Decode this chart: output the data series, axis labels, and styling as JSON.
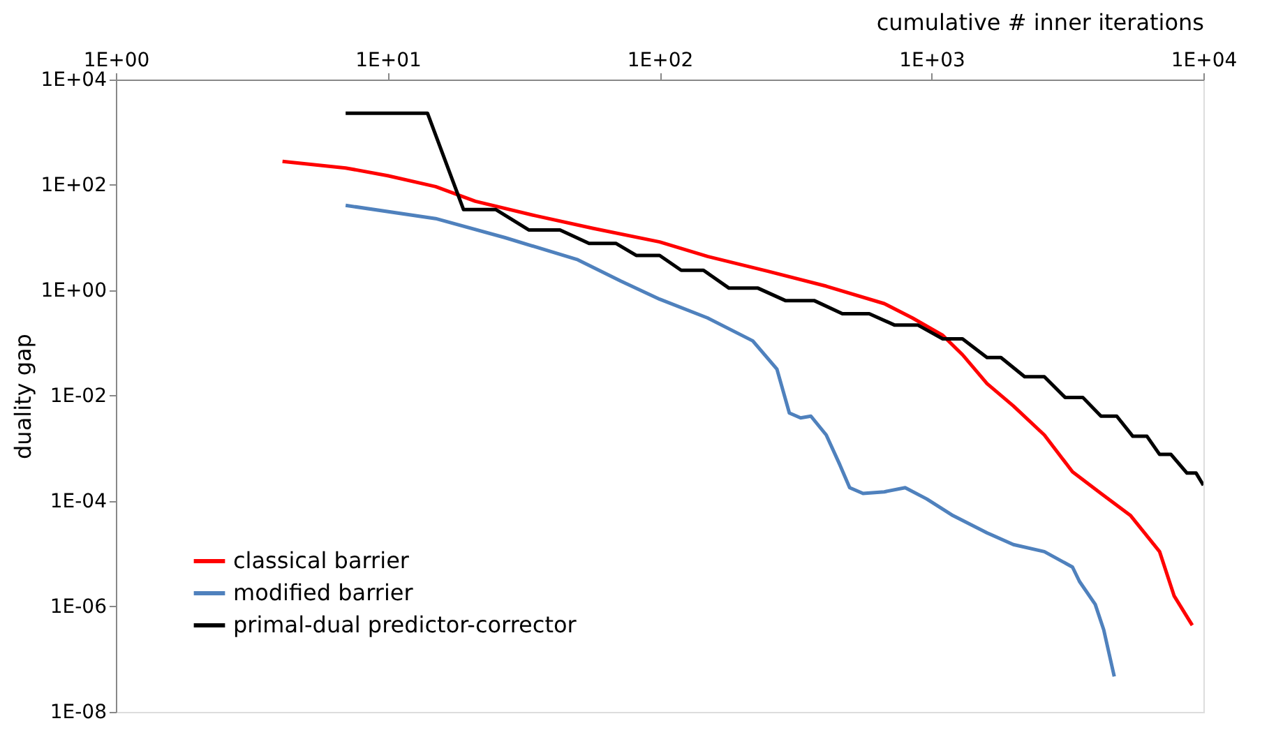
{
  "chart_data": {
    "type": "line",
    "xlabel": "cumulative # inner iterations",
    "ylabel": "duality gap",
    "log": "xy",
    "grid": false,
    "legend": "bottom left",
    "xlim": [
      1,
      10000
    ],
    "ylim": [
      1e-08,
      10000
    ],
    "xticks": [
      {
        "value": 1,
        "label": "1E+00"
      },
      {
        "value": 10,
        "label": "1E+01"
      },
      {
        "value": 100,
        "label": "1E+02"
      },
      {
        "value": 1000,
        "label": "1E+03"
      },
      {
        "value": 10000,
        "label": "1E+04"
      }
    ],
    "yticks": [
      {
        "value": 1e-08,
        "label": "1E-08"
      },
      {
        "value": 1e-06,
        "label": "1E-06"
      },
      {
        "value": 0.0001,
        "label": "1E-04"
      },
      {
        "value": 0.01,
        "label": "1E-02"
      },
      {
        "value": 1,
        "label": "1E+00"
      },
      {
        "value": 100,
        "label": "1E+02"
      },
      {
        "value": 10000,
        "label": "1E+04"
      }
    ],
    "series": [
      {
        "name": "classical barrier",
        "color": "#ff0000",
        "x": [
          4.1,
          7,
          10,
          15,
          21,
          35,
          57,
          100,
          150,
          250,
          410,
          670,
          850,
          1100,
          1300,
          1600,
          2000,
          2600,
          3300,
          4200,
          5400,
          6900,
          7800,
          9100
        ],
        "values": [
          280,
          210,
          150,
          93,
          49,
          26,
          15,
          8.3,
          4.4,
          2.3,
          1.2,
          0.56,
          0.3,
          0.14,
          0.06,
          0.017,
          0.0064,
          0.0018,
          0.00036,
          0.00014,
          5.3e-05,
          1.1e-05,
          1.6e-06,
          4.4e-07
        ]
      },
      {
        "name": "modified barrier",
        "color": "#4f81bd",
        "x": [
          7,
          15,
          27,
          50,
          72,
          100,
          150,
          220,
          270,
          300,
          330,
          360,
          410,
          460,
          500,
          560,
          670,
          800,
          960,
          1200,
          1600,
          2000,
          2600,
          3300,
          3500,
          4000,
          4300,
          4700
        ],
        "values": [
          41,
          23,
          10,
          3.8,
          1.5,
          0.68,
          0.3,
          0.11,
          0.032,
          0.0047,
          0.0038,
          0.0041,
          0.0018,
          0.00049,
          0.00018,
          0.00014,
          0.00015,
          0.00018,
          0.00011,
          5.3e-05,
          2.5e-05,
          1.5e-05,
          1.1e-05,
          5.6e-06,
          3e-06,
          1.1e-06,
          3.6e-07,
          4.7e-08
        ]
      },
      {
        "name": "primal-dual predictor-corrector",
        "color": "#000000",
        "x": [
          7,
          14,
          19,
          25,
          33,
          43,
          55,
          69,
          82,
          100,
          120,
          145,
          180,
          230,
          290,
          370,
          470,
          590,
          730,
          890,
          1100,
          1300,
          1600,
          1800,
          2200,
          2600,
          3100,
          3600,
          4200,
          4800,
          5500,
          6200,
          6900,
          7600,
          8700,
          9400,
          10000
        ],
        "values": [
          2300,
          2300,
          34,
          34,
          14,
          14,
          7.8,
          7.8,
          4.6,
          4.6,
          2.4,
          2.4,
          1.1,
          1.1,
          0.64,
          0.64,
          0.36,
          0.36,
          0.22,
          0.22,
          0.12,
          0.12,
          0.053,
          0.053,
          0.023,
          0.023,
          0.0093,
          0.0093,
          0.0041,
          0.0041,
          0.0017,
          0.0017,
          0.00077,
          0.00077,
          0.00034,
          0.00034,
          0.0002
        ]
      }
    ]
  }
}
